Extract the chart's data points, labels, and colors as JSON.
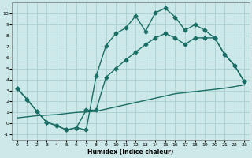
{
  "xlabel": "Humidex (Indice chaleur)",
  "xlim": [
    -0.5,
    23.5
  ],
  "ylim": [
    -1.5,
    11
  ],
  "yticks": [
    -1,
    0,
    1,
    2,
    3,
    4,
    5,
    6,
    7,
    8,
    9,
    10
  ],
  "xticks": [
    0,
    1,
    2,
    3,
    4,
    5,
    6,
    7,
    8,
    9,
    10,
    11,
    12,
    13,
    14,
    15,
    16,
    17,
    18,
    19,
    20,
    21,
    22,
    23
  ],
  "background_color": "#cde8e8",
  "grid_color": "#aacece",
  "line_color": "#1a6e65",
  "line1_x": [
    0,
    1,
    2,
    3,
    4,
    5,
    6,
    7,
    8,
    9,
    10,
    11,
    12,
    13,
    14,
    15,
    16,
    17,
    18,
    19,
    20,
    21,
    22,
    23
  ],
  "line1_y": [
    3.2,
    2.2,
    1.1,
    0.1,
    -0.2,
    -0.6,
    -0.4,
    -0.6,
    4.3,
    7.1,
    8.2,
    8.7,
    9.8,
    8.4,
    10.1,
    10.5,
    9.7,
    8.5,
    9.0,
    8.5,
    7.8,
    6.3,
    5.3,
    3.8
  ],
  "line2_x": [
    0,
    1,
    2,
    3,
    4,
    5,
    6,
    7,
    8,
    9,
    10,
    11,
    12,
    13,
    14,
    15,
    16,
    17,
    18,
    19,
    20,
    21,
    22,
    23
  ],
  "line2_y": [
    3.2,
    2.2,
    1.1,
    0.1,
    -0.2,
    -0.6,
    -0.4,
    1.2,
    1.2,
    4.2,
    5.0,
    5.8,
    6.5,
    7.2,
    7.8,
    8.2,
    7.8,
    7.2,
    7.8,
    7.8,
    7.8,
    6.3,
    5.3,
    3.8
  ],
  "line3_x": [
    0,
    1,
    2,
    3,
    4,
    5,
    6,
    7,
    8,
    9,
    10,
    11,
    12,
    13,
    14,
    15,
    16,
    17,
    18,
    19,
    20,
    21,
    22,
    23
  ],
  "line3_y": [
    0.5,
    0.6,
    0.7,
    0.75,
    0.8,
    0.9,
    1.0,
    1.05,
    1.1,
    1.3,
    1.5,
    1.7,
    1.9,
    2.1,
    2.3,
    2.5,
    2.7,
    2.8,
    2.9,
    3.0,
    3.1,
    3.2,
    3.35,
    3.5
  ],
  "markersize": 2.5,
  "linewidth": 1.0
}
